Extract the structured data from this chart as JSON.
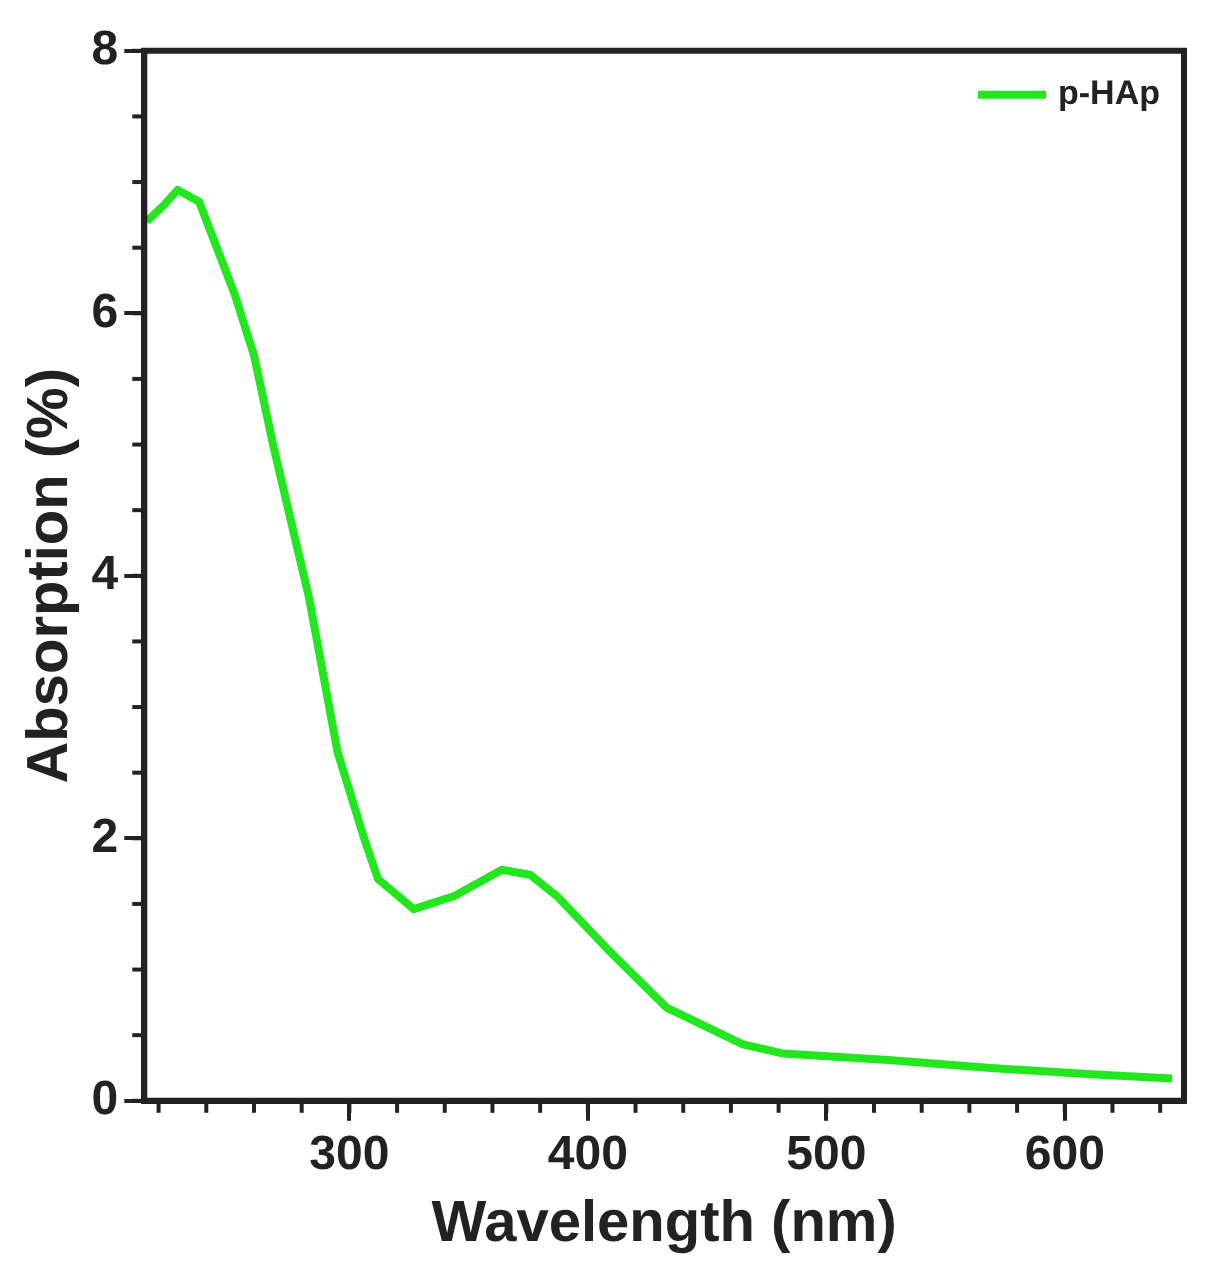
{
  "chart_data": {
    "type": "line",
    "xlabel": "Wavelength (nm)",
    "ylabel": "Absorption (%)",
    "xlim": [
      214,
      650
    ],
    "xticks": [
      300,
      400,
      500,
      600
    ],
    "ylim": [
      0,
      8
    ],
    "yticks": [
      0,
      2,
      4,
      6,
      8
    ],
    "grid": false,
    "legend": "top right",
    "marker": "none",
    "line_style": "solid",
    "x": [
      215,
      222,
      228,
      237,
      252,
      260,
      268,
      277,
      283,
      295,
      306,
      312,
      327,
      344,
      364,
      376,
      387,
      408,
      433,
      465,
      482,
      526,
      569,
      613,
      645
    ],
    "series": [
      {
        "name": "p-HAp",
        "color": "#22e61e",
        "values": [
          6.7,
          6.82,
          6.94,
          6.85,
          6.14,
          5.68,
          5.0,
          4.3,
          3.84,
          2.66,
          2.01,
          1.69,
          1.46,
          1.56,
          1.76,
          1.72,
          1.56,
          1.16,
          0.71,
          0.43,
          0.36,
          0.31,
          0.25,
          0.2,
          0.17
        ]
      }
    ]
  }
}
